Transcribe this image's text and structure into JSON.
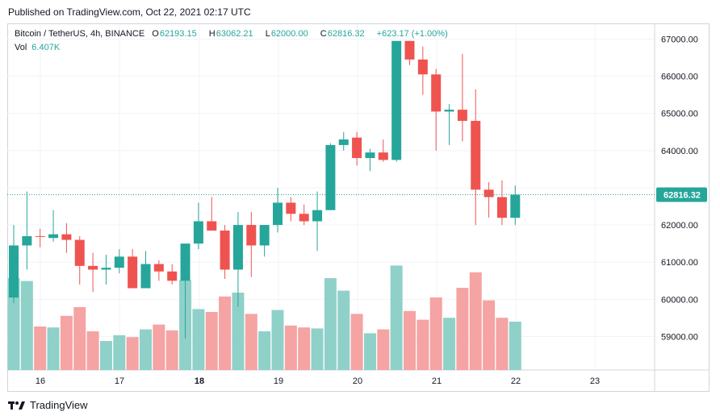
{
  "header": {
    "published": "Published on TradingView.com, Oct 22, 2021 02:17 UTC"
  },
  "legend": {
    "symbol": "Bitcoin / TetherUS, 4h, BINANCE",
    "open_label": "O",
    "open": "62193.15",
    "high_label": "H",
    "high": "63062.21",
    "low_label": "L",
    "low": "62000.00",
    "close_label": "C",
    "close": "62816.32",
    "change": "+623.17 (+1.00%)",
    "vol_label": "Vol",
    "vol": "6.407K"
  },
  "footer": {
    "brand": "TradingView"
  },
  "colors": {
    "up": "#26a69a",
    "down": "#ef5350",
    "up_vol": "#8fd1c9",
    "down_vol": "#f5a3a3",
    "price_tag": "#26a69a",
    "grid": "#f0f3fa"
  },
  "chart_data": {
    "type": "candlestick",
    "symbol": "Bitcoin / TetherUS",
    "interval": "4h",
    "exchange": "BINANCE",
    "x_labels": [
      "16",
      "17",
      "18",
      "19",
      "20",
      "21",
      "22",
      "23"
    ],
    "y_ticks": [
      "59000.00",
      "60000.00",
      "61000.00",
      "62000.00",
      "63000.00",
      "64000.00",
      "65000.00",
      "66000.00",
      "67000.00"
    ],
    "ylim": [
      58100,
      67400
    ],
    "last_price": 62816.32,
    "last_price_label": "62816.32",
    "grid": true,
    "candles": [
      {
        "o": 60050,
        "h": 62000,
        "l": 59900,
        "c": 61450,
        "v": 0.95
      },
      {
        "o": 61450,
        "h": 62900,
        "l": 60800,
        "c": 61700,
        "v": 0.92
      },
      {
        "o": 61700,
        "h": 61900,
        "l": 61400,
        "c": 61680,
        "v": 0.45
      },
      {
        "o": 61650,
        "h": 62400,
        "l": 61550,
        "c": 61750,
        "v": 0.44
      },
      {
        "o": 61750,
        "h": 62050,
        "l": 61250,
        "c": 61600,
        "v": 0.56
      },
      {
        "o": 61600,
        "h": 61700,
        "l": 60400,
        "c": 60900,
        "v": 0.65
      },
      {
        "o": 60900,
        "h": 61250,
        "l": 60200,
        "c": 60800,
        "v": 0.4
      },
      {
        "o": 60800,
        "h": 61200,
        "l": 60400,
        "c": 60850,
        "v": 0.3
      },
      {
        "o": 60850,
        "h": 61350,
        "l": 60700,
        "c": 61150,
        "v": 0.36
      },
      {
        "o": 61150,
        "h": 61350,
        "l": 60300,
        "c": 60300,
        "v": 0.34
      },
      {
        "o": 60300,
        "h": 61300,
        "l": 60300,
        "c": 60950,
        "v": 0.42
      },
      {
        "o": 60950,
        "h": 61050,
        "l": 60500,
        "c": 60750,
        "v": 0.47
      },
      {
        "o": 60750,
        "h": 60950,
        "l": 60400,
        "c": 60500,
        "v": 0.41
      },
      {
        "o": 60500,
        "h": 61500,
        "l": 58950,
        "c": 61500,
        "v": 0.93
      },
      {
        "o": 61500,
        "h": 62600,
        "l": 61350,
        "c": 62100,
        "v": 0.63
      },
      {
        "o": 62100,
        "h": 62750,
        "l": 61850,
        "c": 61850,
        "v": 0.6
      },
      {
        "o": 61850,
        "h": 62000,
        "l": 60550,
        "c": 60800,
        "v": 0.76
      },
      {
        "o": 60800,
        "h": 62350,
        "l": 59800,
        "c": 62000,
        "v": 0.8
      },
      {
        "o": 62000,
        "h": 62350,
        "l": 60600,
        "c": 61450,
        "v": 0.58
      },
      {
        "o": 61450,
        "h": 62000,
        "l": 61150,
        "c": 62000,
        "v": 0.4
      },
      {
        "o": 62000,
        "h": 63000,
        "l": 61800,
        "c": 62600,
        "v": 0.62
      },
      {
        "o": 62600,
        "h": 62750,
        "l": 62100,
        "c": 62300,
        "v": 0.46
      },
      {
        "o": 62300,
        "h": 62550,
        "l": 62000,
        "c": 62100,
        "v": 0.44
      },
      {
        "o": 62100,
        "h": 62900,
        "l": 61300,
        "c": 62400,
        "v": 0.43
      },
      {
        "o": 62400,
        "h": 64200,
        "l": 62400,
        "c": 64150,
        "v": 0.95
      },
      {
        "o": 64150,
        "h": 64500,
        "l": 64000,
        "c": 64300,
        "v": 0.82
      },
      {
        "o": 64350,
        "h": 64500,
        "l": 63600,
        "c": 63800,
        "v": 0.58
      },
      {
        "o": 63800,
        "h": 64050,
        "l": 63450,
        "c": 63950,
        "v": 0.38
      },
      {
        "o": 63950,
        "h": 64300,
        "l": 63700,
        "c": 63750,
        "v": 0.42
      },
      {
        "o": 63750,
        "h": 66950,
        "l": 63700,
        "c": 66950,
        "v": 1.08
      },
      {
        "o": 66950,
        "h": 66950,
        "l": 66300,
        "c": 66450,
        "v": 0.61
      },
      {
        "o": 66450,
        "h": 66800,
        "l": 65500,
        "c": 66050,
        "v": 0.52
      },
      {
        "o": 66050,
        "h": 66200,
        "l": 64000,
        "c": 65050,
        "v": 0.75
      },
      {
        "o": 65050,
        "h": 65250,
        "l": 64150,
        "c": 65100,
        "v": 0.54
      },
      {
        "o": 65100,
        "h": 66600,
        "l": 64250,
        "c": 64800,
        "v": 0.85
      },
      {
        "o": 64800,
        "h": 65650,
        "l": 62000,
        "c": 62950,
        "v": 1.01
      },
      {
        "o": 62950,
        "h": 63150,
        "l": 62200,
        "c": 62750,
        "v": 0.72
      },
      {
        "o": 62750,
        "h": 63200,
        "l": 62000,
        "c": 62193,
        "v": 0.54
      },
      {
        "o": 62193,
        "h": 63062,
        "l": 62000,
        "c": 62816,
        "v": 0.5
      }
    ]
  }
}
